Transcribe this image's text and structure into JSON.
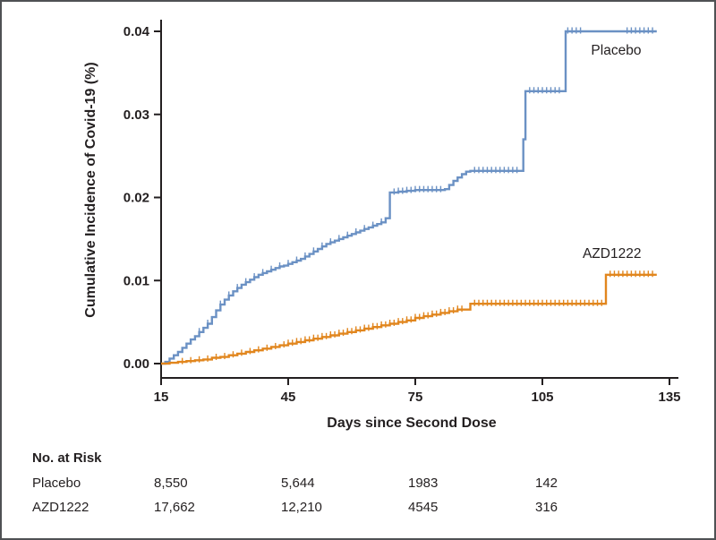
{
  "chart_data": {
    "type": "line",
    "subtype": "kaplan-meier-cumulative-incidence",
    "title": "",
    "xlabel": "Days since Second Dose",
    "ylabel": "Cumulative Incidence of Covid-19 (%)",
    "xlim": [
      15,
      135
    ],
    "ylim": [
      0,
      0.04
    ],
    "x_ticks": [
      15,
      45,
      75,
      105,
      135
    ],
    "x_tick_labels": [
      "15",
      "45",
      "75",
      "105",
      "135"
    ],
    "y_ticks": [
      0,
      0.01,
      0.02,
      0.03,
      0.04
    ],
    "y_tick_labels": [
      "0.00",
      "0.01",
      "0.02",
      "0.03",
      "0.04"
    ],
    "grid": false,
    "legend_position": "inline-labels",
    "axis_color": "#231f20",
    "series": [
      {
        "name": "Placebo",
        "color": "#6b91c4",
        "style": "step-after",
        "label_pos": {
          "day": 116.5,
          "value": 0.0372
        },
        "points": [
          [
            15,
            0
          ],
          [
            16,
            0.0002
          ],
          [
            17,
            0.0006
          ],
          [
            18,
            0.001
          ],
          [
            19,
            0.0014
          ],
          [
            20,
            0.0019
          ],
          [
            21,
            0.0024
          ],
          [
            22,
            0.0029
          ],
          [
            23,
            0.0033
          ],
          [
            24,
            0.0038
          ],
          [
            25,
            0.0043
          ],
          [
            26,
            0.0048
          ],
          [
            27,
            0.0056
          ],
          [
            28,
            0.0064
          ],
          [
            29,
            0.0071
          ],
          [
            30,
            0.0077
          ],
          [
            31,
            0.0082
          ],
          [
            32,
            0.0087
          ],
          [
            33,
            0.0091
          ],
          [
            34,
            0.0095
          ],
          [
            35,
            0.0098
          ],
          [
            36,
            0.0101
          ],
          [
            37,
            0.0104
          ],
          [
            38,
            0.0107
          ],
          [
            39,
            0.0109
          ],
          [
            40,
            0.0111
          ],
          [
            41,
            0.0113
          ],
          [
            42,
            0.0115
          ],
          [
            43,
            0.0117
          ],
          [
            44,
            0.0118
          ],
          [
            45,
            0.012
          ],
          [
            46,
            0.0122
          ],
          [
            47,
            0.0124
          ],
          [
            48,
            0.0126
          ],
          [
            49,
            0.0129
          ],
          [
            50,
            0.0132
          ],
          [
            51,
            0.0135
          ],
          [
            52,
            0.0138
          ],
          [
            53,
            0.0141
          ],
          [
            54,
            0.0144
          ],
          [
            55,
            0.0146
          ],
          [
            56,
            0.0148
          ],
          [
            57,
            0.015
          ],
          [
            58,
            0.0152
          ],
          [
            59,
            0.0154
          ],
          [
            60,
            0.0156
          ],
          [
            61,
            0.0158
          ],
          [
            62,
            0.016
          ],
          [
            63,
            0.0162
          ],
          [
            64,
            0.0164
          ],
          [
            65,
            0.0166
          ],
          [
            66,
            0.0168
          ],
          [
            67,
            0.017
          ],
          [
            68,
            0.0175
          ],
          [
            69,
            0.0206
          ],
          [
            71,
            0.0207
          ],
          [
            73,
            0.0208
          ],
          [
            75,
            0.0209
          ],
          [
            82,
            0.021
          ],
          [
            83,
            0.0215
          ],
          [
            84,
            0.022
          ],
          [
            85,
            0.0224
          ],
          [
            86,
            0.0228
          ],
          [
            87,
            0.0231
          ],
          [
            88,
            0.0232
          ],
          [
            100,
            0.0232
          ],
          [
            100.5,
            0.027
          ],
          [
            101,
            0.0328
          ],
          [
            110,
            0.0328
          ],
          [
            110.5,
            0.04
          ],
          [
            132,
            0.04
          ]
        ],
        "censor_days": [
          24,
          26,
          29,
          31,
          33,
          35,
          37,
          39,
          41,
          43,
          45,
          47,
          49,
          51,
          53,
          55,
          57,
          59,
          61,
          63,
          65,
          67,
          70,
          71,
          72,
          73,
          74,
          75,
          76,
          77,
          78,
          79,
          80,
          81,
          89,
          90,
          91,
          92,
          93,
          94,
          95,
          96,
          97,
          98,
          99,
          102,
          103,
          104,
          105,
          106,
          107,
          108,
          109,
          111,
          112,
          113,
          114,
          125,
          126,
          127,
          128,
          129,
          130,
          131
        ]
      },
      {
        "name": "AZD1222",
        "color": "#e1861e",
        "style": "step-after",
        "label_pos": {
          "day": 114.5,
          "value": 0.0127
        },
        "points": [
          [
            15,
            0
          ],
          [
            17,
            0.0001
          ],
          [
            19,
            0.0002
          ],
          [
            21,
            0.0003
          ],
          [
            23,
            0.0004
          ],
          [
            25,
            0.0005
          ],
          [
            27,
            0.0007
          ],
          [
            29,
            0.0008
          ],
          [
            31,
            0.001
          ],
          [
            33,
            0.0012
          ],
          [
            35,
            0.0014
          ],
          [
            37,
            0.0016
          ],
          [
            39,
            0.0018
          ],
          [
            41,
            0.002
          ],
          [
            43,
            0.0022
          ],
          [
            45,
            0.0024
          ],
          [
            47,
            0.0026
          ],
          [
            49,
            0.0028
          ],
          [
            51,
            0.003
          ],
          [
            53,
            0.0032
          ],
          [
            55,
            0.0034
          ],
          [
            57,
            0.0036
          ],
          [
            59,
            0.0038
          ],
          [
            61,
            0.004
          ],
          [
            63,
            0.0042
          ],
          [
            65,
            0.0044
          ],
          [
            67,
            0.0046
          ],
          [
            69,
            0.0048
          ],
          [
            71,
            0.005
          ],
          [
            73,
            0.0052
          ],
          [
            75,
            0.0055
          ],
          [
            77,
            0.0057
          ],
          [
            79,
            0.0059
          ],
          [
            81,
            0.0061
          ],
          [
            83,
            0.0063
          ],
          [
            85,
            0.0065
          ],
          [
            88,
            0.0072
          ],
          [
            119.5,
            0.0072
          ],
          [
            120,
            0.0107
          ],
          [
            132,
            0.0107
          ]
        ],
        "censor_days": [
          20,
          22,
          24,
          26,
          28,
          30,
          32,
          34,
          36,
          38,
          40,
          42,
          44,
          45,
          46,
          47,
          48,
          49,
          50,
          51,
          52,
          53,
          54,
          55,
          56,
          57,
          58,
          59,
          60,
          61,
          62,
          63,
          64,
          65,
          66,
          67,
          68,
          69,
          70,
          71,
          72,
          73,
          74,
          75,
          76,
          77,
          78,
          79,
          80,
          81,
          82,
          83,
          84,
          85,
          86,
          89,
          90,
          91,
          92,
          93,
          94,
          95,
          96,
          97,
          98,
          99,
          100,
          101,
          102,
          103,
          104,
          105,
          106,
          107,
          108,
          109,
          110,
          111,
          112,
          113,
          114,
          115,
          116,
          117,
          118,
          119,
          121,
          122,
          123,
          124,
          125,
          126,
          127,
          128,
          129,
          130,
          131
        ]
      }
    ]
  },
  "risk_table": {
    "header": "No. at Risk",
    "column_days": [
      15,
      45,
      75,
      105
    ],
    "rows": [
      {
        "label": "Placebo",
        "values": [
          "8,550",
          "5,644",
          "1983",
          "142"
        ]
      },
      {
        "label": "AZD1222",
        "values": [
          "17,662",
          "12,210",
          "4545",
          "316"
        ]
      }
    ]
  }
}
